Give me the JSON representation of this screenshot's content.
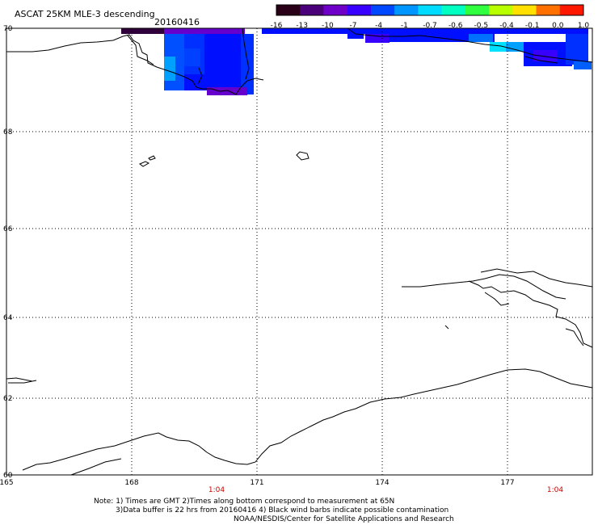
{
  "title": {
    "product": "ASCAT 25KM MLE-3 descending",
    "date": "20160416"
  },
  "colorbar": {
    "labels": [
      "-16",
      "-13",
      "-10",
      "-7",
      "-4",
      "-1",
      "-0.7",
      "-0.6",
      "-0.5",
      "-0.4",
      "-0.1",
      "0.0",
      "1.0"
    ],
    "colors": [
      "#2a0018",
      "#4a0078",
      "#6e00c8",
      "#3800ff",
      "#0048ff",
      "#0096ff",
      "#00dcff",
      "#00ffc0",
      "#30ff40",
      "#b8ff00",
      "#ffe000",
      "#ff7000",
      "#ff1800"
    ]
  },
  "axes": {
    "lat_labels": [
      "70",
      "68",
      "66",
      "64",
      "62",
      "60"
    ],
    "lon_labels": [
      "165",
      "168",
      "171",
      "174",
      "177"
    ],
    "time_labels": [
      "1:04",
      "1:04"
    ],
    "grid": "dotted"
  },
  "notes": [
    "Note: 1) Times are GMT 2)Times along bottom correspond to measurement at 65N",
    "3)Data buffer is 22 hrs from 20160416 4) Black wind barbs indicate possible contamination",
    "NOAA/NESDIS/Center for Satellite Applications and Research"
  ],
  "map": {
    "colors": {
      "violet": "#6600cc",
      "dark": "#30003c",
      "blue": "#0010ff",
      "mid_blue": "#0050ff",
      "cyan_blue": "#00a0ff",
      "cyan": "#00e0ff",
      "coast": "#000000"
    }
  }
}
